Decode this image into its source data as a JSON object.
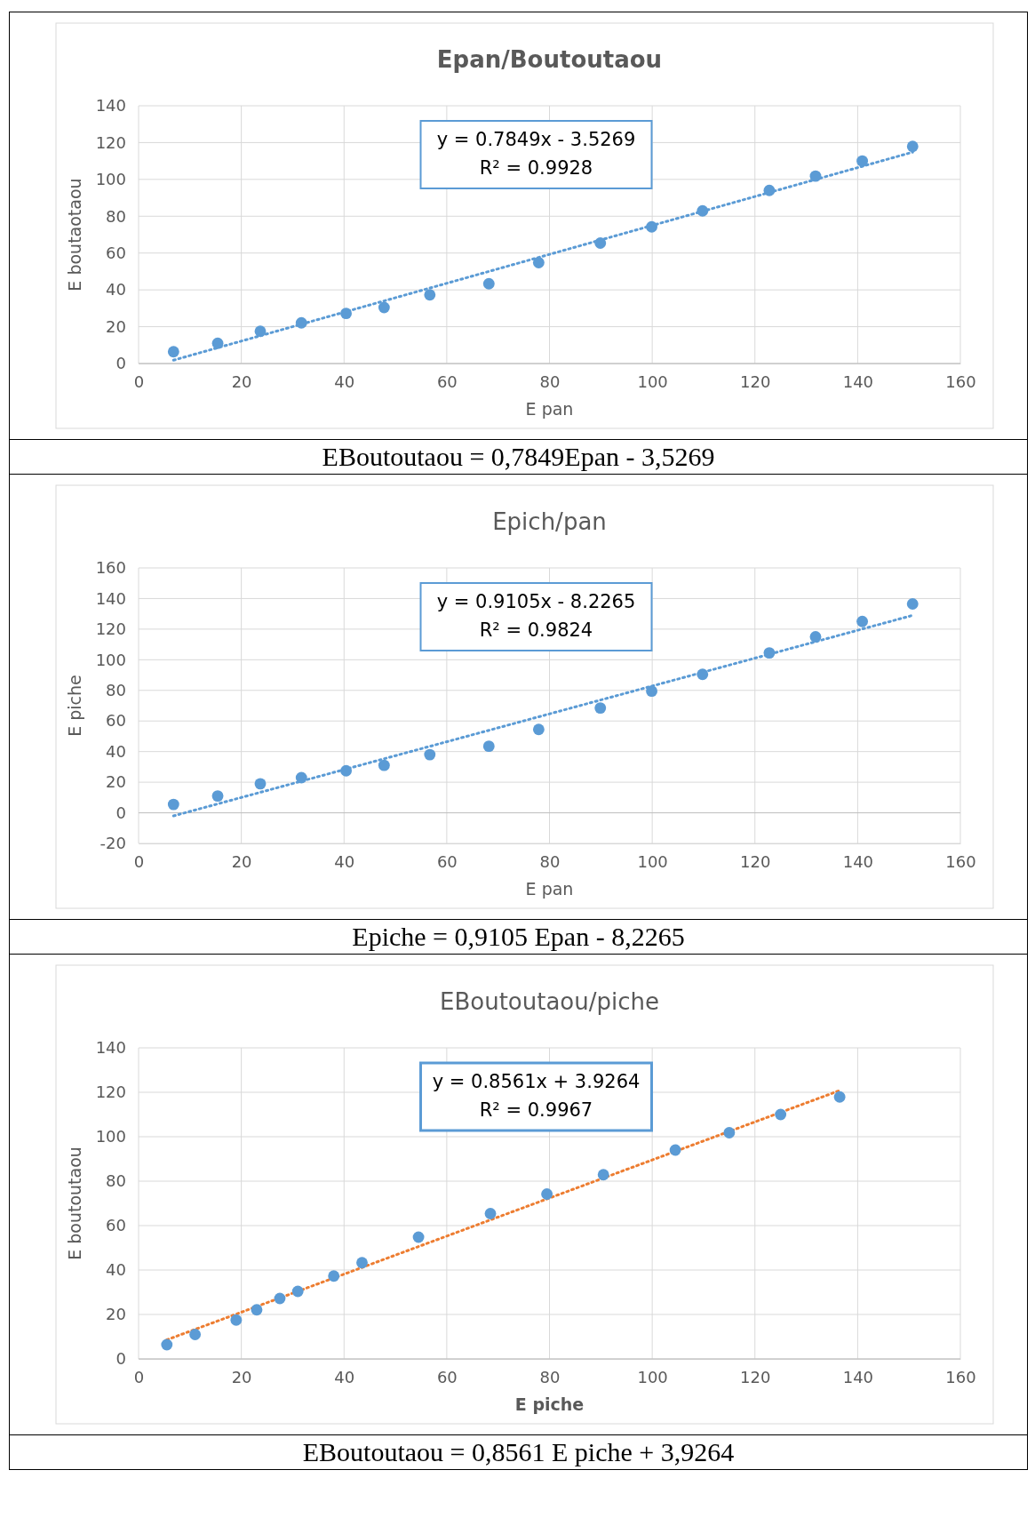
{
  "chart_data": [
    {
      "type": "scatter",
      "title": "Epan/Boutoutaou",
      "xlabel": "E pan",
      "ylabel": "E boutaotaou",
      "xlim": [
        0,
        160
      ],
      "xticks": [
        0,
        20,
        40,
        60,
        80,
        100,
        120,
        140,
        160
      ],
      "ylim": [
        0,
        140
      ],
      "yticks": [
        0,
        20,
        40,
        60,
        80,
        100,
        120,
        140
      ],
      "grid": true,
      "annotations": [
        "y = 0.7849x - 3.5269",
        "R² = 0.9928",
        "EBoutoutaou = 0,7849Epan - 3,5269"
      ],
      "series": [
        {
          "marker": "circle",
          "color": "#5b9bd5",
          "x": [
            6.8,
            15.4,
            23.7,
            31.7,
            40.4,
            47.8,
            56.7,
            68.2,
            77.9,
            89.9,
            99.9,
            109.8,
            122.8,
            131.8,
            140.9,
            150.7
          ],
          "values": [
            6.4,
            11,
            17.5,
            22.1,
            27.2,
            30.4,
            37.3,
            43.3,
            54.8,
            65.4,
            74.2,
            82.9,
            94,
            101.8,
            110,
            117.9
          ]
        },
        {
          "type": "line",
          "marker": "none",
          "color": "#5b9bd5",
          "line_style": "dotted",
          "x": [
            6.8,
            150.7
          ],
          "values": [
            1.8,
            114.8
          ]
        }
      ]
    },
    {
      "type": "scatter",
      "title": "Epich/pan",
      "xlabel": "E pan",
      "ylabel": "E piche",
      "xlim": [
        0,
        160
      ],
      "xticks": [
        0,
        20,
        40,
        60,
        80,
        100,
        120,
        140,
        160
      ],
      "ylim": [
        -20,
        160
      ],
      "yticks": [
        -20,
        0,
        20,
        40,
        60,
        80,
        100,
        120,
        140,
        160
      ],
      "grid": true,
      "annotations": [
        "y = 0.9105x - 8.2265",
        "R² = 0.9824",
        "Epiche = 0,9105 Epan - 8,2265"
      ],
      "series": [
        {
          "marker": "circle",
          "color": "#5b9bd5",
          "x": [
            6.8,
            15.4,
            23.7,
            31.7,
            40.4,
            47.8,
            56.7,
            68.2,
            77.9,
            89.9,
            99.9,
            109.8,
            122.8,
            131.8,
            140.9,
            150.7
          ],
          "values": [
            5.5,
            11,
            19,
            23,
            27.5,
            31,
            38,
            43.5,
            54.5,
            68.5,
            79.5,
            90.5,
            104.5,
            115,
            125,
            136.5
          ]
        },
        {
          "type": "line",
          "marker": "none",
          "color": "#5b9bd5",
          "line_style": "dotted",
          "x": [
            6.8,
            150.7
          ],
          "values": [
            -2,
            129
          ]
        }
      ]
    },
    {
      "type": "scatter",
      "title": "EBoutoutaou/piche",
      "xlabel": "E piche",
      "ylabel": "E boutoutaou",
      "xlim": [
        0,
        160
      ],
      "xticks": [
        0,
        20,
        40,
        60,
        80,
        100,
        120,
        140,
        160
      ],
      "ylim": [
        0,
        140
      ],
      "yticks": [
        0,
        20,
        40,
        60,
        80,
        100,
        120,
        140
      ],
      "grid": true,
      "annotations": [
        "y = 0.8561x + 3.9264",
        "R² = 0.9967",
        "EBoutoutaou = 0,8561 E piche + 3,9264"
      ],
      "series": [
        {
          "marker": "circle",
          "color": "#5b9bd5",
          "x": [
            5.5,
            11,
            19,
            23,
            27.5,
            31,
            38,
            43.5,
            54.5,
            68.5,
            79.5,
            90.5,
            104.5,
            115,
            125,
            136.5
          ],
          "values": [
            6.4,
            11,
            17.5,
            22.1,
            27.2,
            30.4,
            37.3,
            43.3,
            54.8,
            65.4,
            74.2,
            82.9,
            94,
            101.8,
            110,
            117.9
          ]
        },
        {
          "type": "line",
          "marker": "none",
          "color": "#ed7d31",
          "line_style": "dotted",
          "x": [
            5.5,
            136.5
          ],
          "values": [
            8.6,
            120.8
          ]
        }
      ]
    }
  ]
}
